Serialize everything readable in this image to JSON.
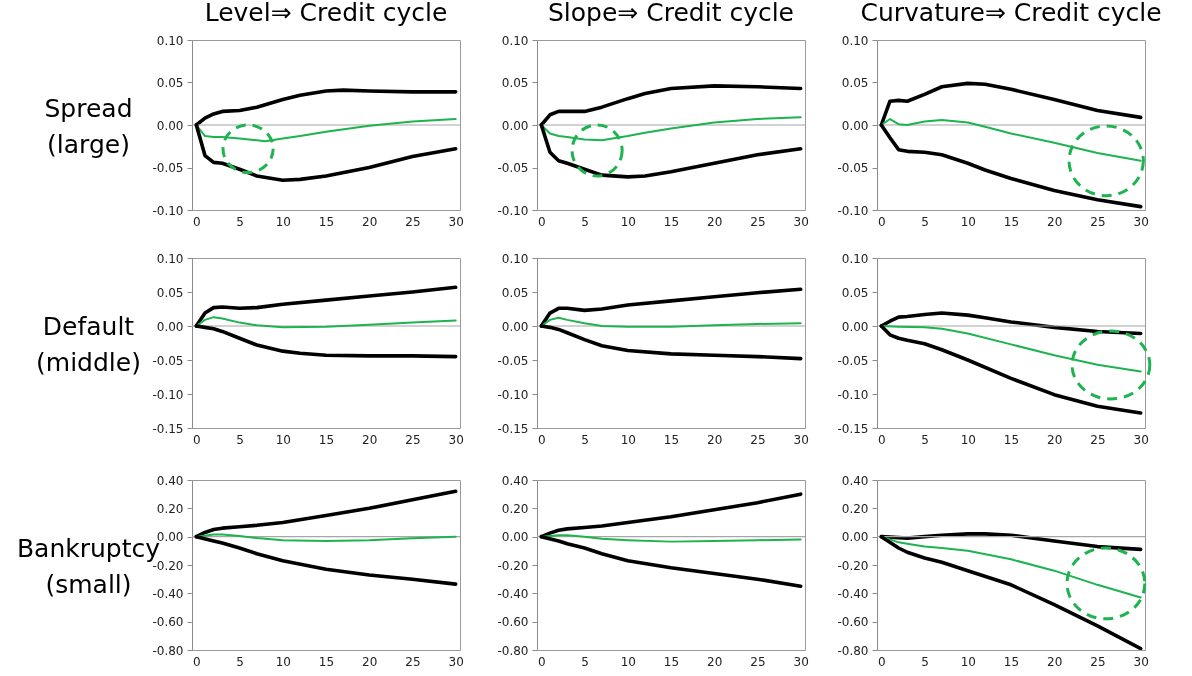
{
  "chart_data": [
    {
      "type": "line",
      "title": "Level⇒ Credit cycle",
      "ylabel": "Spread (large)",
      "xlim": [
        -0.5,
        30.5
      ],
      "xticks": [
        0,
        5,
        10,
        15,
        20,
        25,
        30
      ],
      "ylim": [
        -0.1,
        0.1
      ],
      "yticks": [
        {
          "value": -0.1,
          "label": "-0.10"
        },
        {
          "value": -0.05,
          "label": "-0.05"
        },
        {
          "value": 0,
          "label": "0.00"
        },
        {
          "value": 0.05,
          "label": "0.05"
        },
        {
          "value": 0.1,
          "label": "0.10"
        }
      ],
      "ref_lines": [
        {
          "axis": "y",
          "value": 0,
          "color": "#a6a6a6"
        }
      ],
      "series": [
        {
          "color": "#000000",
          "x": [
            0,
            1,
            2,
            3,
            5,
            7,
            10,
            12,
            15,
            17,
            20,
            25,
            30
          ],
          "values": [
            0,
            0.008,
            0.013,
            0.016,
            0.017,
            0.021,
            0.03,
            0.035,
            0.04,
            0.041,
            0.04,
            0.039,
            0.039
          ]
        },
        {
          "color": "#1db34f",
          "x": [
            0,
            1,
            2,
            3,
            5,
            7,
            8,
            10,
            12,
            15,
            20,
            25,
            30
          ],
          "values": [
            0,
            -0.013,
            -0.014,
            -0.014,
            -0.016,
            -0.018,
            -0.019,
            -0.016,
            -0.013,
            -0.008,
            -0.001,
            0.004,
            0.007
          ]
        },
        {
          "color": "#000000",
          "x": [
            0,
            1,
            2,
            3,
            5,
            7,
            10,
            12,
            15,
            20,
            25,
            30
          ],
          "values": [
            0,
            -0.036,
            -0.044,
            -0.045,
            -0.052,
            -0.06,
            -0.065,
            -0.064,
            -0.06,
            -0.05,
            -0.037,
            -0.028
          ]
        }
      ]
    },
    {
      "type": "line",
      "title": "Slope⇒ Credit cycle",
      "xlim": [
        -0.5,
        30.5
      ],
      "xticks": [
        0,
        5,
        10,
        15,
        20,
        25,
        30
      ],
      "ylim": [
        -0.1,
        0.1
      ],
      "yticks": [
        {
          "value": -0.1,
          "label": "-0.10"
        },
        {
          "value": -0.05,
          "label": "-0.05"
        },
        {
          "value": 0,
          "label": "0.00"
        },
        {
          "value": 0.05,
          "label": "0.05"
        },
        {
          "value": 0.1,
          "label": "0.10"
        }
      ],
      "ref_lines": [
        {
          "axis": "y",
          "value": 0,
          "color": "#a6a6a6"
        }
      ],
      "series": [
        {
          "color": "#000000",
          "x": [
            0,
            1,
            2,
            3,
            5,
            7,
            10,
            12,
            15,
            20,
            25,
            30
          ],
          "values": [
            0,
            0.012,
            0.016,
            0.016,
            0.016,
            0.021,
            0.031,
            0.037,
            0.043,
            0.046,
            0.045,
            0.043
          ]
        },
        {
          "color": "#1db34f",
          "x": [
            0,
            1,
            2,
            3,
            5,
            7,
            10,
            12,
            15,
            20,
            25,
            30
          ],
          "values": [
            0,
            -0.01,
            -0.013,
            -0.014,
            -0.017,
            -0.018,
            -0.013,
            -0.009,
            -0.004,
            0.003,
            0.007,
            0.009
          ]
        },
        {
          "color": "#000000",
          "x": [
            0,
            1,
            2,
            3,
            5,
            7,
            10,
            12,
            15,
            20,
            25,
            30
          ],
          "values": [
            0,
            -0.032,
            -0.042,
            -0.045,
            -0.052,
            -0.059,
            -0.061,
            -0.06,
            -0.055,
            -0.045,
            -0.035,
            -0.028
          ]
        }
      ]
    },
    {
      "type": "line",
      "title": "Curvature⇒ Credit cycle",
      "xlim": [
        -0.5,
        30.5
      ],
      "xticks": [
        0,
        5,
        10,
        15,
        20,
        25,
        30
      ],
      "ylim": [
        -0.1,
        0.1
      ],
      "yticks": [
        {
          "value": -0.1,
          "label": "-0.10"
        },
        {
          "value": -0.05,
          "label": "-0.05"
        },
        {
          "value": 0,
          "label": "0.00"
        },
        {
          "value": 0.05,
          "label": "0.05"
        },
        {
          "value": 0.1,
          "label": "0.10"
        }
      ],
      "ref_lines": [
        {
          "axis": "y",
          "value": 0,
          "color": "#a6a6a6"
        }
      ],
      "series": [
        {
          "color": "#000000",
          "x": [
            0,
            1,
            2,
            3,
            5,
            7,
            10,
            12,
            15,
            20,
            25,
            30
          ],
          "values": [
            0,
            0.028,
            0.029,
            0.028,
            0.036,
            0.045,
            0.049,
            0.048,
            0.042,
            0.03,
            0.017,
            0.009
          ]
        },
        {
          "color": "#1db34f",
          "x": [
            0,
            1,
            2,
            3,
            5,
            7,
            10,
            12,
            15,
            20,
            25,
            30
          ],
          "values": [
            0,
            0.007,
            0.001,
            0,
            0.004,
            0.006,
            0.003,
            -0.002,
            -0.01,
            -0.021,
            -0.033,
            -0.042
          ]
        },
        {
          "color": "#000000",
          "x": [
            0,
            1,
            2,
            3,
            5,
            7,
            10,
            12,
            15,
            20,
            25,
            30
          ],
          "values": [
            0,
            -0.015,
            -0.029,
            -0.031,
            -0.032,
            -0.035,
            -0.045,
            -0.053,
            -0.063,
            -0.077,
            -0.088,
            -0.096
          ]
        }
      ]
    },
    {
      "type": "line",
      "ylabel": "Default (middle)",
      "xlim": [
        -0.5,
        30.5
      ],
      "xticks": [
        0,
        5,
        10,
        15,
        20,
        25,
        30
      ],
      "ylim": [
        -0.15,
        0.1
      ],
      "yticks": [
        {
          "value": -0.15,
          "label": "-0.15"
        },
        {
          "value": -0.1,
          "label": "-0.10"
        },
        {
          "value": -0.05,
          "label": "-0.05"
        },
        {
          "value": 0,
          "label": "0.00"
        },
        {
          "value": 0.05,
          "label": "0.05"
        },
        {
          "value": 0.1,
          "label": "0.10"
        }
      ],
      "ref_lines": [
        {
          "axis": "y",
          "value": 0,
          "color": "#a6a6a6"
        }
      ],
      "series": [
        {
          "color": "#000000",
          "x": [
            0,
            1,
            2,
            3,
            5,
            7,
            10,
            15,
            20,
            25,
            30
          ],
          "values": [
            0,
            0.019,
            0.027,
            0.028,
            0.026,
            0.027,
            0.032,
            0.038,
            0.044,
            0.05,
            0.057
          ]
        },
        {
          "color": "#1db34f",
          "x": [
            0,
            1,
            2,
            3,
            5,
            7,
            10,
            15,
            20,
            25,
            30
          ],
          "values": [
            0,
            0.009,
            0.013,
            0.011,
            0.005,
            0.001,
            -0.002,
            -0.001,
            0.002,
            0.005,
            0.008
          ]
        },
        {
          "color": "#000000",
          "x": [
            0,
            1,
            2,
            3,
            5,
            7,
            10,
            12,
            15,
            20,
            25,
            30
          ],
          "values": [
            0,
            -0.002,
            -0.004,
            -0.008,
            -0.018,
            -0.028,
            -0.037,
            -0.04,
            -0.043,
            -0.044,
            -0.044,
            -0.045
          ]
        }
      ]
    },
    {
      "type": "line",
      "xlim": [
        -0.5,
        30.5
      ],
      "xticks": [
        0,
        5,
        10,
        15,
        20,
        25,
        30
      ],
      "ylim": [
        -0.15,
        0.1
      ],
      "yticks": [
        {
          "value": -0.15,
          "label": "-0.15"
        },
        {
          "value": -0.1,
          "label": "-0.10"
        },
        {
          "value": -0.05,
          "label": "-0.05"
        },
        {
          "value": 0,
          "label": "0.00"
        },
        {
          "value": 0.05,
          "label": "0.05"
        },
        {
          "value": 0.1,
          "label": "0.10"
        }
      ],
      "ref_lines": [
        {
          "axis": "y",
          "value": 0,
          "color": "#a6a6a6"
        }
      ],
      "series": [
        {
          "color": "#000000",
          "x": [
            0,
            1,
            2,
            3,
            5,
            7,
            10,
            15,
            20,
            25,
            30
          ],
          "values": [
            0,
            0.019,
            0.026,
            0.026,
            0.023,
            0.025,
            0.031,
            0.037,
            0.043,
            0.049,
            0.054
          ]
        },
        {
          "color": "#1db34f",
          "x": [
            0,
            1,
            2,
            3,
            5,
            7,
            10,
            15,
            20,
            25,
            30
          ],
          "values": [
            0,
            0.009,
            0.012,
            0.009,
            0.004,
            0,
            -0.001,
            -0.001,
            0.001,
            0.003,
            0.004
          ]
        },
        {
          "color": "#000000",
          "x": [
            0,
            1,
            2,
            3,
            5,
            7,
            10,
            15,
            20,
            25,
            30
          ],
          "values": [
            0,
            -0.002,
            -0.005,
            -0.01,
            -0.02,
            -0.029,
            -0.036,
            -0.041,
            -0.043,
            -0.045,
            -0.048
          ]
        }
      ]
    },
    {
      "type": "line",
      "xlim": [
        -0.5,
        30.5
      ],
      "xticks": [
        0,
        5,
        10,
        15,
        20,
        25,
        30
      ],
      "ylim": [
        -0.15,
        0.1
      ],
      "yticks": [
        {
          "value": -0.15,
          "label": "-0.15"
        },
        {
          "value": -0.1,
          "label": "-0.10"
        },
        {
          "value": -0.05,
          "label": "-0.05"
        },
        {
          "value": 0,
          "label": "0.00"
        },
        {
          "value": 0.05,
          "label": "0.05"
        },
        {
          "value": 0.1,
          "label": "0.10"
        }
      ],
      "ref_lines": [
        {
          "axis": "y",
          "value": 0,
          "color": "#a6a6a6"
        }
      ],
      "series": [
        {
          "color": "#000000",
          "x": [
            0,
            1,
            2,
            3,
            5,
            7,
            10,
            12,
            15,
            20,
            25,
            30
          ],
          "values": [
            0,
            0.007,
            0.013,
            0.014,
            0.017,
            0.019,
            0.016,
            0.012,
            0.006,
            -0.002,
            -0.008,
            -0.011
          ]
        },
        {
          "color": "#1db34f",
          "x": [
            0,
            2,
            5,
            7,
            10,
            15,
            20,
            25,
            30
          ],
          "values": [
            0,
            -0.001,
            -0.002,
            -0.004,
            -0.011,
            -0.027,
            -0.043,
            -0.057,
            -0.067
          ]
        },
        {
          "color": "#000000",
          "x": [
            0,
            1,
            2,
            3,
            5,
            7,
            10,
            15,
            20,
            25,
            30
          ],
          "values": [
            0,
            -0.013,
            -0.018,
            -0.021,
            -0.026,
            -0.035,
            -0.05,
            -0.077,
            -0.101,
            -0.118,
            -0.128
          ]
        }
      ]
    },
    {
      "type": "line",
      "ylabel": "Bankruptcy (small)",
      "xlim": [
        -0.5,
        30.5
      ],
      "xticks": [
        0,
        5,
        10,
        15,
        20,
        25,
        30
      ],
      "ylim": [
        -0.8,
        0.4
      ],
      "yticks": [
        {
          "value": -0.8,
          "label": "-0.80"
        },
        {
          "value": -0.6,
          "label": "-0.60"
        },
        {
          "value": -0.4,
          "label": "-0.40"
        },
        {
          "value": -0.2,
          "label": "-0.20"
        },
        {
          "value": 0,
          "label": "0.00"
        },
        {
          "value": 0.2,
          "label": "0.20"
        },
        {
          "value": 0.4,
          "label": "0.40"
        }
      ],
      "ref_lines": [
        {
          "axis": "y",
          "value": 0,
          "color": "#a6a6a6"
        }
      ],
      "series": [
        {
          "color": "#000000",
          "x": [
            0,
            1,
            2,
            3,
            5,
            7,
            10,
            15,
            20,
            25,
            30
          ],
          "values": [
            0,
            0.03,
            0.05,
            0.06,
            0.07,
            0.08,
            0.1,
            0.15,
            0.2,
            0.26,
            0.32
          ]
        },
        {
          "color": "#1db34f",
          "x": [
            0,
            2,
            3,
            5,
            7,
            10,
            15,
            20,
            25,
            30
          ],
          "values": [
            0,
            0.015,
            0.015,
            0.005,
            -0.01,
            -0.025,
            -0.03,
            -0.025,
            -0.012,
            0
          ]
        },
        {
          "color": "#000000",
          "x": [
            0,
            2,
            3,
            5,
            7,
            10,
            15,
            20,
            25,
            30
          ],
          "values": [
            0,
            -0.03,
            -0.045,
            -0.08,
            -0.12,
            -0.17,
            -0.23,
            -0.27,
            -0.3,
            -0.335
          ]
        }
      ]
    },
    {
      "type": "line",
      "xlim": [
        -0.5,
        30.5
      ],
      "xticks": [
        0,
        5,
        10,
        15,
        20,
        25,
        30
      ],
      "ylim": [
        -0.8,
        0.4
      ],
      "yticks": [
        {
          "value": -0.8,
          "label": "-0.80"
        },
        {
          "value": -0.6,
          "label": "-0.60"
        },
        {
          "value": -0.4,
          "label": "-0.40"
        },
        {
          "value": -0.2,
          "label": "-0.20"
        },
        {
          "value": 0,
          "label": "0.00"
        },
        {
          "value": 0.2,
          "label": "0.20"
        },
        {
          "value": 0.4,
          "label": "0.40"
        }
      ],
      "ref_lines": [
        {
          "axis": "y",
          "value": 0,
          "color": "#a6a6a6"
        }
      ],
      "series": [
        {
          "color": "#000000",
          "x": [
            0,
            1,
            2,
            3,
            5,
            7,
            10,
            15,
            20,
            25,
            30
          ],
          "values": [
            0,
            0.025,
            0.045,
            0.055,
            0.065,
            0.075,
            0.1,
            0.14,
            0.19,
            0.24,
            0.3
          ]
        },
        {
          "color": "#1db34f",
          "x": [
            0,
            2,
            3,
            5,
            7,
            10,
            15,
            20,
            25,
            30
          ],
          "values": [
            0,
            0.01,
            0.01,
            0,
            -0.015,
            -0.025,
            -0.035,
            -0.03,
            -0.025,
            -0.02
          ]
        },
        {
          "color": "#000000",
          "x": [
            0,
            2,
            3,
            5,
            7,
            10,
            15,
            20,
            25,
            30
          ],
          "values": [
            0,
            -0.03,
            -0.05,
            -0.08,
            -0.12,
            -0.17,
            -0.22,
            -0.26,
            -0.3,
            -0.35
          ]
        }
      ]
    },
    {
      "type": "line",
      "xlim": [
        -0.5,
        30.5
      ],
      "xticks": [
        0,
        5,
        10,
        15,
        20,
        25,
        30
      ],
      "ylim": [
        -0.8,
        0.4
      ],
      "yticks": [
        {
          "value": -0.8,
          "label": "-0.80"
        },
        {
          "value": -0.6,
          "label": "-0.60"
        },
        {
          "value": -0.4,
          "label": "-0.40"
        },
        {
          "value": -0.2,
          "label": "-0.20"
        },
        {
          "value": 0,
          "label": "0.00"
        },
        {
          "value": 0.2,
          "label": "0.20"
        },
        {
          "value": 0.4,
          "label": "0.40"
        }
      ],
      "ref_lines": [
        {
          "axis": "y",
          "value": 0,
          "color": "#a6a6a6"
        }
      ],
      "series": [
        {
          "color": "#000000",
          "x": [
            0,
            3,
            5,
            7,
            10,
            12,
            15,
            20,
            25,
            30
          ],
          "values": [
            0,
            -0.01,
            0,
            0.01,
            0.02,
            0.02,
            0.01,
            -0.03,
            -0.07,
            -0.09
          ]
        },
        {
          "color": "#1db34f",
          "x": [
            0,
            2,
            3,
            5,
            7,
            10,
            15,
            20,
            25,
            30
          ],
          "values": [
            0,
            -0.04,
            -0.05,
            -0.07,
            -0.08,
            -0.1,
            -0.16,
            -0.24,
            -0.34,
            -0.43
          ]
        },
        {
          "color": "#000000",
          "x": [
            0,
            2,
            3,
            5,
            7,
            10,
            15,
            20,
            25,
            30
          ],
          "values": [
            0,
            -0.08,
            -0.11,
            -0.15,
            -0.18,
            -0.24,
            -0.34,
            -0.48,
            -0.63,
            -0.79
          ]
        }
      ]
    }
  ]
}
